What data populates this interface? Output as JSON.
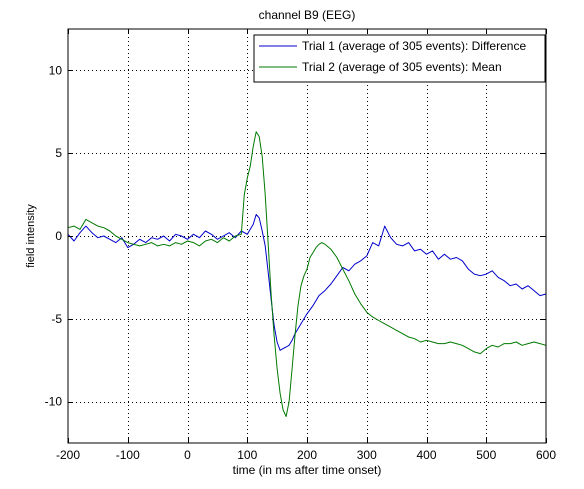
{
  "chart_data": {
    "type": "line",
    "title": "channel B9 (EEG)",
    "xlabel": "time (in ms after time onset)",
    "ylabel": "field intensity",
    "xlim": [
      -200,
      600
    ],
    "ylim": [
      -12.5,
      12.5
    ],
    "xticks": [
      -200,
      -100,
      0,
      100,
      200,
      300,
      400,
      500,
      600
    ],
    "xtick_labels": [
      "-200",
      "-100",
      "0",
      "100",
      "200",
      "300",
      "400",
      "500",
      "600"
    ],
    "yticks": [
      -10,
      -5,
      0,
      5,
      10
    ],
    "ytick_labels": [
      "-10",
      "-5",
      "0",
      "5",
      "10"
    ],
    "grid": true,
    "grid_style": "dotted",
    "legend_position": "top-right",
    "series": [
      {
        "name": "Trial 1 (average of 305 events): Difference",
        "color": "#0000cc",
        "points": [
          [
            -200,
            0.1
          ],
          [
            -190,
            -0.3
          ],
          [
            -180,
            0.2
          ],
          [
            -170,
            0.6
          ],
          [
            -160,
            0.2
          ],
          [
            -150,
            -0.1
          ],
          [
            -140,
            0.0
          ],
          [
            -130,
            -0.2
          ],
          [
            -120,
            -0.4
          ],
          [
            -110,
            -0.1
          ],
          [
            -100,
            -0.7
          ],
          [
            -90,
            -0.5
          ],
          [
            -80,
            -0.2
          ],
          [
            -70,
            -0.4
          ],
          [
            -60,
            -0.1
          ],
          [
            -50,
            -0.2
          ],
          [
            -40,
            0.0
          ],
          [
            -30,
            -0.3
          ],
          [
            -20,
            0.1
          ],
          [
            -10,
            0.0
          ],
          [
            0,
            -0.2
          ],
          [
            10,
            0.1
          ],
          [
            20,
            -0.1
          ],
          [
            30,
            0.3
          ],
          [
            40,
            0.1
          ],
          [
            50,
            -0.2
          ],
          [
            60,
            0.0
          ],
          [
            70,
            0.2
          ],
          [
            80,
            -0.1
          ],
          [
            90,
            0.3
          ],
          [
            100,
            0.1
          ],
          [
            105,
            0.4
          ],
          [
            110,
            0.7
          ],
          [
            115,
            1.3
          ],
          [
            120,
            1.1
          ],
          [
            125,
            0.3
          ],
          [
            130,
            -0.6
          ],
          [
            135,
            -2.2
          ],
          [
            140,
            -3.8
          ],
          [
            145,
            -5.4
          ],
          [
            150,
            -6.4
          ],
          [
            155,
            -6.9
          ],
          [
            160,
            -6.8
          ],
          [
            165,
            -6.7
          ],
          [
            170,
            -6.6
          ],
          [
            175,
            -6.3
          ],
          [
            180,
            -5.9
          ],
          [
            185,
            -5.6
          ],
          [
            190,
            -5.3
          ],
          [
            200,
            -4.7
          ],
          [
            210,
            -4.2
          ],
          [
            220,
            -3.6
          ],
          [
            230,
            -3.3
          ],
          [
            240,
            -2.9
          ],
          [
            250,
            -2.4
          ],
          [
            260,
            -1.9
          ],
          [
            270,
            -2.1
          ],
          [
            280,
            -1.7
          ],
          [
            290,
            -1.5
          ],
          [
            300,
            -1.2
          ],
          [
            310,
            -0.4
          ],
          [
            320,
            -0.6
          ],
          [
            330,
            0.6
          ],
          [
            340,
            -0.1
          ],
          [
            350,
            -0.5
          ],
          [
            360,
            -0.6
          ],
          [
            370,
            -0.4
          ],
          [
            380,
            -0.9
          ],
          [
            390,
            -0.8
          ],
          [
            400,
            -1.1
          ],
          [
            410,
            -0.9
          ],
          [
            420,
            -1.4
          ],
          [
            430,
            -1.1
          ],
          [
            440,
            -1.4
          ],
          [
            450,
            -1.3
          ],
          [
            460,
            -1.5
          ],
          [
            470,
            -2.0
          ],
          [
            480,
            -2.3
          ],
          [
            490,
            -2.4
          ],
          [
            500,
            -2.3
          ],
          [
            510,
            -2.1
          ],
          [
            520,
            -2.5
          ],
          [
            530,
            -2.7
          ],
          [
            540,
            -3.0
          ],
          [
            550,
            -2.9
          ],
          [
            560,
            -3.2
          ],
          [
            570,
            -3.0
          ],
          [
            580,
            -3.3
          ],
          [
            590,
            -3.6
          ],
          [
            600,
            -3.5
          ]
        ]
      },
      {
        "name": "Trial 2 (average of 305 events): Mean",
        "color": "#007a00",
        "points": [
          [
            -200,
            0.5
          ],
          [
            -190,
            0.6
          ],
          [
            -180,
            0.4
          ],
          [
            -170,
            1.0
          ],
          [
            -160,
            0.8
          ],
          [
            -150,
            0.6
          ],
          [
            -140,
            0.5
          ],
          [
            -130,
            0.3
          ],
          [
            -120,
            0.0
          ],
          [
            -110,
            -0.2
          ],
          [
            -100,
            -0.4
          ],
          [
            -90,
            -0.5
          ],
          [
            -80,
            -0.6
          ],
          [
            -70,
            -0.5
          ],
          [
            -60,
            -0.4
          ],
          [
            -50,
            -0.6
          ],
          [
            -40,
            -0.5
          ],
          [
            -30,
            -0.6
          ],
          [
            -20,
            -0.4
          ],
          [
            -10,
            -0.5
          ],
          [
            0,
            -0.3
          ],
          [
            10,
            -0.4
          ],
          [
            20,
            -0.6
          ],
          [
            30,
            -0.3
          ],
          [
            40,
            -0.2
          ],
          [
            50,
            -0.4
          ],
          [
            60,
            -0.1
          ],
          [
            70,
            -0.3
          ],
          [
            80,
            0.0
          ],
          [
            90,
            0.1
          ],
          [
            95,
            2.5
          ],
          [
            100,
            3.5
          ],
          [
            105,
            4.2
          ],
          [
            110,
            5.4
          ],
          [
            115,
            6.3
          ],
          [
            120,
            6.0
          ],
          [
            125,
            4.8
          ],
          [
            130,
            2.5
          ],
          [
            135,
            -0.5
          ],
          [
            140,
            -3.5
          ],
          [
            145,
            -6.0
          ],
          [
            150,
            -8.0
          ],
          [
            155,
            -9.5
          ],
          [
            160,
            -10.5
          ],
          [
            165,
            -10.9
          ],
          [
            170,
            -10.0
          ],
          [
            175,
            -8.0
          ],
          [
            180,
            -6.0
          ],
          [
            185,
            -4.2
          ],
          [
            190,
            -3.0
          ],
          [
            195,
            -2.4
          ],
          [
            200,
            -2.0
          ],
          [
            205,
            -1.3
          ],
          [
            210,
            -1.0
          ],
          [
            215,
            -0.7
          ],
          [
            220,
            -0.5
          ],
          [
            225,
            -0.4
          ],
          [
            230,
            -0.5
          ],
          [
            240,
            -0.8
          ],
          [
            250,
            -1.3
          ],
          [
            260,
            -2.0
          ],
          [
            270,
            -2.7
          ],
          [
            280,
            -3.5
          ],
          [
            290,
            -4.1
          ],
          [
            300,
            -4.6
          ],
          [
            310,
            -4.9
          ],
          [
            320,
            -5.1
          ],
          [
            330,
            -5.3
          ],
          [
            340,
            -5.5
          ],
          [
            350,
            -5.7
          ],
          [
            360,
            -5.9
          ],
          [
            370,
            -6.1
          ],
          [
            380,
            -6.2
          ],
          [
            390,
            -6.4
          ],
          [
            400,
            -6.3
          ],
          [
            410,
            -6.4
          ],
          [
            420,
            -6.5
          ],
          [
            430,
            -6.5
          ],
          [
            440,
            -6.4
          ],
          [
            450,
            -6.5
          ],
          [
            460,
            -6.6
          ],
          [
            470,
            -6.8
          ],
          [
            480,
            -7.0
          ],
          [
            490,
            -7.1
          ],
          [
            500,
            -6.8
          ],
          [
            510,
            -6.6
          ],
          [
            520,
            -6.7
          ],
          [
            530,
            -6.5
          ],
          [
            540,
            -6.5
          ],
          [
            550,
            -6.4
          ],
          [
            560,
            -6.6
          ],
          [
            570,
            -6.5
          ],
          [
            580,
            -6.4
          ],
          [
            590,
            -6.5
          ],
          [
            600,
            -6.6
          ]
        ]
      }
    ]
  }
}
